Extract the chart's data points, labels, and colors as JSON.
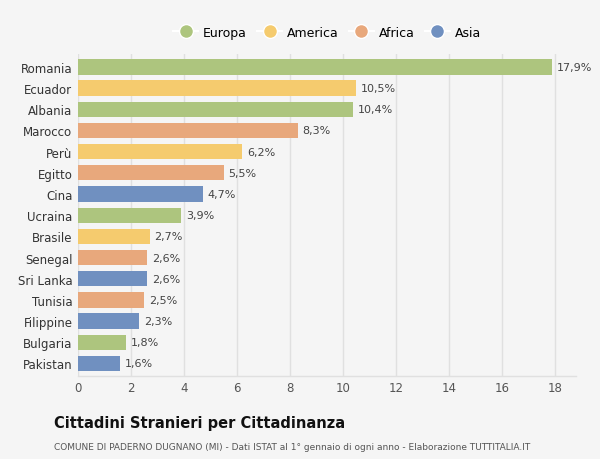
{
  "countries": [
    "Romania",
    "Ecuador",
    "Albania",
    "Marocco",
    "Perù",
    "Egitto",
    "Cina",
    "Ucraina",
    "Brasile",
    "Senegal",
    "Sri Lanka",
    "Tunisia",
    "Filippine",
    "Bulgaria",
    "Pakistan"
  ],
  "values": [
    17.9,
    10.5,
    10.4,
    8.3,
    6.2,
    5.5,
    4.7,
    3.9,
    2.7,
    2.6,
    2.6,
    2.5,
    2.3,
    1.8,
    1.6
  ],
  "labels": [
    "17,9%",
    "10,5%",
    "10,4%",
    "8,3%",
    "6,2%",
    "5,5%",
    "4,7%",
    "3,9%",
    "2,7%",
    "2,6%",
    "2,6%",
    "2,5%",
    "2,3%",
    "1,8%",
    "1,6%"
  ],
  "continents": [
    "Europa",
    "America",
    "Europa",
    "Africa",
    "America",
    "Africa",
    "Asia",
    "Europa",
    "America",
    "Africa",
    "Asia",
    "Africa",
    "Asia",
    "Europa",
    "Asia"
  ],
  "colors": {
    "Europa": "#adc57e",
    "America": "#f5cb6e",
    "Africa": "#e8a87c",
    "Asia": "#7090c0"
  },
  "legend_order": [
    "Europa",
    "America",
    "Africa",
    "Asia"
  ],
  "title": "Cittadini Stranieri per Cittadinanza",
  "subtitle": "COMUNE DI PADERNO DUGNANO (MI) - Dati ISTAT al 1° gennaio di ogni anno - Elaborazione TUTTITALIA.IT",
  "xlim": [
    0,
    18.8
  ],
  "xticks": [
    0,
    2,
    4,
    6,
    8,
    10,
    12,
    14,
    16,
    18
  ],
  "background_color": "#f5f5f5",
  "grid_color": "#e0e0e0",
  "bar_height": 0.72
}
